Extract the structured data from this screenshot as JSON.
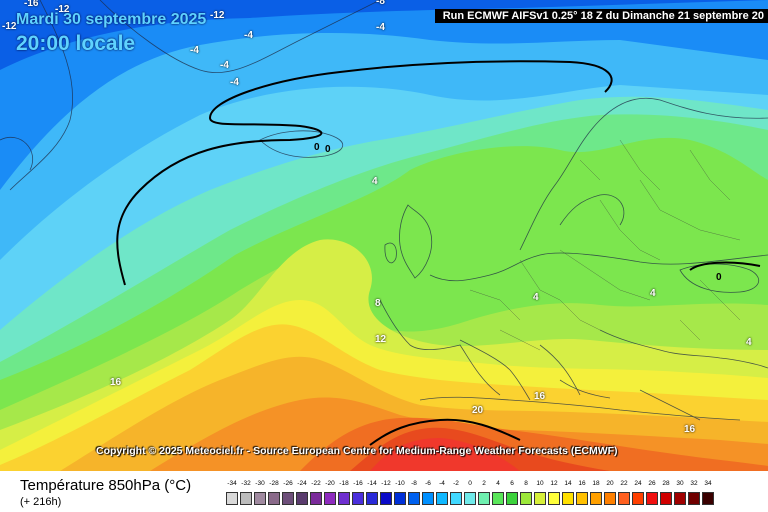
{
  "header": {
    "run": "Run ECMWF AIFSv1 0.25° 18 Z du Dimanche 21 septembre 20",
    "date": "Mardi 30 septembre 2025",
    "time": "20:00 locale"
  },
  "copyright": "Copyright © 2025 Meteociel.fr - Source European Centre for Medium-Range Weather Forecasts (ECMWF)",
  "footer": {
    "parameter": "Température 850hPa (°C)",
    "step": "(+ 216h)"
  },
  "colorbar": {
    "ticks": [
      "-34",
      "-32",
      "-30",
      "-28",
      "-26",
      "-24",
      "-22",
      "-20",
      "-18",
      "-16",
      "-14",
      "-12",
      "-10",
      "-8",
      "-6",
      "-4",
      "-2",
      "0",
      "2",
      "4",
      "6",
      "8",
      "10",
      "12",
      "14",
      "16",
      "18",
      "20",
      "22",
      "24",
      "26",
      "28",
      "30",
      "32",
      "34"
    ],
    "colors": [
      "#d9d9d9",
      "#bcbcbc",
      "#a08aa0",
      "#8a6a8a",
      "#6e4f7a",
      "#5a3b6e",
      "#7a2a9a",
      "#8e2bbf",
      "#6f2fd0",
      "#4b2fdc",
      "#2a2ad8",
      "#0a0ac8",
      "#0030d8",
      "#0060ee",
      "#0090ff",
      "#10b8ff",
      "#40d8ff",
      "#70eaea",
      "#6ff0b0",
      "#5ae65a",
      "#3cd23c",
      "#9ce83a",
      "#d8f03a",
      "#ffff3a",
      "#ffe000",
      "#ffc000",
      "#ffa000",
      "#ff8000",
      "#ff6020",
      "#ff4000",
      "#f01010",
      "#d00000",
      "#a00000",
      "#700000",
      "#3a0000"
    ]
  },
  "map_labels": [
    "-16",
    "-12",
    "-12",
    "-12",
    "-8",
    "-4",
    "-4",
    "-4",
    "-4",
    "-4",
    "0",
    "0",
    "4",
    "4",
    "4",
    "4",
    "8",
    "12",
    "16",
    "16",
    "16",
    "20",
    "0"
  ]
}
